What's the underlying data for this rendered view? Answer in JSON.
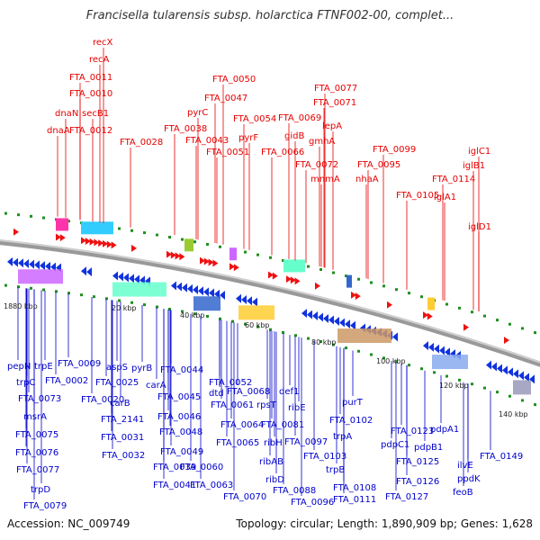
{
  "title": "Francisella tularensis subsp. holarctica FTNF002-00, complet...",
  "footer": {
    "accession": "Accession: NC_009749",
    "summary": "Topology: circular; Length: 1,890,909 bp; Genes: 1,628"
  },
  "colors": {
    "forward_label": "#e60000",
    "reverse_label": "#0000cc",
    "backbone": "#9a9a9a",
    "tick_green": "#1f8f1f",
    "forward_arrow": "#ee1111",
    "reverse_arrow": "#1133dd"
  },
  "ticks": [
    "1880 kbp",
    "20 kbp",
    "40 kbp",
    "60 kbp",
    "80 kbp",
    "100 kbp",
    "120 kbp",
    "140 kbp"
  ],
  "top_labels": [
    "recX",
    "recA",
    "FTA_0011",
    "FTA_0010",
    "secB1",
    "FTA_0012",
    "dnaN",
    "dnaA",
    "FTA_0028",
    "pyrC",
    "FTA_0038",
    "FTA_0043",
    "FTA_0047",
    "FTA_0050",
    "FTA_0051",
    "FTA_0054",
    "pyrF",
    "FTA_0066",
    "gidB",
    "FTA_0069",
    "FTA_0071",
    "FTA_0077",
    "lepA",
    "gmhA",
    "FTA_0072",
    "mnmA",
    "nhaA",
    "FTA_0095",
    "FTA_0099",
    "FTA_0105",
    "FTA_0114",
    "iglA1",
    "iglB1",
    "iglC1",
    "iglD1"
  ],
  "bottom_labels": [
    "pepN",
    "trpE",
    "trpC",
    "FTA_0073",
    "msrA",
    "FTA_0075",
    "FTA_0076",
    "FTA_0077",
    "trpD",
    "FTA_0079",
    "FTA_0002",
    "FTA_0009",
    "aspS",
    "FTA_0025",
    "FTA_0020",
    "pyrB",
    "FTA_2141",
    "carB",
    "carA",
    "FTA_0031",
    "FTA_0032",
    "FTA_0039",
    "FTA_0041",
    "FTA_0044",
    "FTA_0045",
    "FTA_0046",
    "FTA_0048",
    "FTA_0049",
    "dtd",
    "FTA_0052",
    "FTA_0060",
    "FTA_0061",
    "FTA_0063",
    "FTA_0064",
    "FTA_0065",
    "FTA_0068",
    "FTA_0070",
    "rpsT",
    "def1",
    "ribE",
    "FTA_0081",
    "ribH",
    "ribAB",
    "ribD",
    "FTA_0088",
    "FTA_0096",
    "FTA_0097",
    "purT",
    "FTA_0102",
    "trpA",
    "FTA_0103",
    "trpB",
    "FTA_0108",
    "FTA_0111",
    "FTA_0123",
    "pdpC1",
    "FTA_0125",
    "FTA_0126",
    "FTA_0127",
    "pdpB1",
    "pdpA1",
    "ilvE",
    "ppdK",
    "feoB",
    "FTA_0149"
  ]
}
